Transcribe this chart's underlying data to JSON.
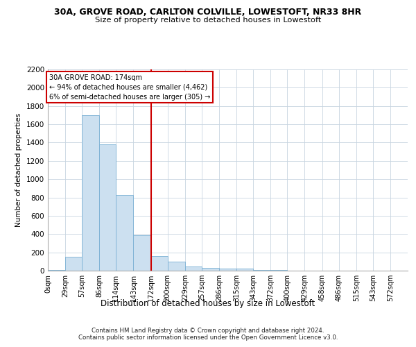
{
  "title1": "30A, GROVE ROAD, CARLTON COLVILLE, LOWESTOFT, NR33 8HR",
  "title2": "Size of property relative to detached houses in Lowestoft",
  "xlabel": "Distribution of detached houses by size in Lowestoft",
  "ylabel": "Number of detached properties",
  "bar_color": "#cce0f0",
  "bar_edge_color": "#7ab0d4",
  "marker_value": 172,
  "marker_color": "#cc0000",
  "annotation_lines": [
    "30A GROVE ROAD: 174sqm",
    "← 94% of detached houses are smaller (4,462)",
    "6% of semi-detached houses are larger (305) →"
  ],
  "categories": [
    "0sqm",
    "29sqm",
    "57sqm",
    "86sqm",
    "114sqm",
    "143sqm",
    "172sqm",
    "200sqm",
    "229sqm",
    "257sqm",
    "286sqm",
    "315sqm",
    "343sqm",
    "372sqm",
    "400sqm",
    "429sqm",
    "458sqm",
    "486sqm",
    "515sqm",
    "543sqm",
    "572sqm"
  ],
  "bin_edges": [
    0,
    29,
    57,
    86,
    114,
    143,
    172,
    200,
    229,
    257,
    286,
    315,
    343,
    372,
    400,
    429,
    458,
    486,
    515,
    543,
    572,
    601
  ],
  "values": [
    10,
    150,
    1700,
    1380,
    830,
    390,
    160,
    100,
    45,
    30,
    25,
    20,
    8,
    5,
    3,
    2,
    1,
    1,
    1,
    0,
    0
  ],
  "ylim": [
    0,
    2200
  ],
  "yticks": [
    0,
    200,
    400,
    600,
    800,
    1000,
    1200,
    1400,
    1600,
    1800,
    2000,
    2200
  ],
  "footer1": "Contains HM Land Registry data © Crown copyright and database right 2024.",
  "footer2": "Contains public sector information licensed under the Open Government Licence v3.0."
}
